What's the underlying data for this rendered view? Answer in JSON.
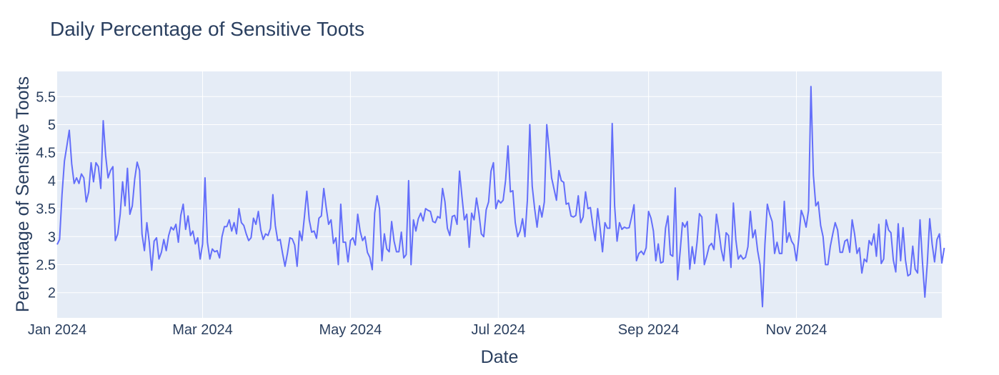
{
  "chart_data": {
    "type": "line",
    "title": "Daily Percentage of Sensitive Toots",
    "xlabel": "Date",
    "ylabel": "Percentage of Sensitive Toots",
    "x_start": "2024-01-01",
    "x_tick_labels": [
      "Jan 2024",
      "Mar 2024",
      "May 2024",
      "Jul 2024",
      "Sep 2024",
      "Nov 2024"
    ],
    "y_tick_labels": [
      "2",
      "2.5",
      "3",
      "3.5",
      "4",
      "4.5",
      "5",
      "5.5"
    ],
    "xlim": [
      "2024-01-01",
      "2024-12-31"
    ],
    "ylim": [
      1.55,
      5.95
    ],
    "grid": true,
    "colors": {
      "line": "#636efa",
      "plot_bg": "#e5ecf6",
      "grid": "#ffffff",
      "text": "#2a3f5f"
    },
    "series": [
      {
        "values": [
          2.86,
          2.95,
          3.75,
          4.35,
          4.62,
          4.9,
          4.3,
          3.95,
          4.05,
          3.95,
          4.12,
          4.05,
          3.62,
          3.8,
          4.32,
          3.98,
          4.32,
          4.25,
          3.86,
          5.07,
          4.45,
          4.05,
          4.18,
          4.25,
          2.93,
          3.05,
          3.4,
          3.98,
          3.55,
          4.22,
          3.4,
          3.55,
          4.03,
          4.33,
          4.18,
          3.05,
          2.75,
          3.25,
          2.9,
          2.4,
          2.92,
          2.98,
          2.6,
          2.72,
          2.95,
          2.75,
          3.02,
          3.17,
          3.12,
          3.22,
          2.9,
          3.38,
          3.58,
          3.13,
          3.37,
          3.02,
          3.1,
          2.87,
          2.98,
          2.6,
          2.87,
          4.05,
          2.9,
          2.6,
          2.78,
          2.73,
          2.75,
          2.62,
          3.0,
          3.18,
          3.18,
          3.3,
          3.1,
          3.25,
          3.05,
          3.5,
          3.25,
          3.2,
          3.05,
          2.93,
          2.98,
          3.33,
          3.22,
          3.45,
          3.12,
          2.95,
          3.05,
          3.02,
          3.15,
          3.75,
          3.2,
          2.93,
          2.95,
          2.7,
          2.47,
          2.7,
          2.98,
          2.96,
          2.85,
          2.47,
          3.1,
          2.93,
          3.35,
          3.81,
          3.3,
          3.08,
          3.1,
          2.97,
          3.33,
          3.37,
          3.86,
          3.52,
          3.22,
          3.3,
          2.88,
          2.98,
          2.5,
          3.58,
          2.9,
          2.9,
          2.55,
          2.93,
          2.98,
          2.85,
          3.4,
          3.1,
          2.93,
          3.0,
          2.72,
          2.63,
          2.41,
          3.42,
          3.73,
          3.5,
          2.57,
          3.05,
          2.78,
          2.73,
          3.27,
          2.92,
          2.73,
          2.73,
          3.08,
          2.62,
          2.68,
          4.0,
          2.5,
          3.3,
          3.1,
          3.32,
          3.42,
          3.28,
          3.5,
          3.47,
          3.45,
          3.27,
          3.25,
          3.36,
          3.33,
          3.86,
          3.62,
          3.15,
          3.02,
          3.36,
          3.38,
          3.22,
          4.17,
          3.72,
          3.3,
          3.4,
          2.81,
          3.42,
          3.3,
          3.69,
          3.42,
          3.05,
          3.0,
          3.48,
          3.62,
          4.17,
          4.32,
          3.5,
          3.65,
          3.6,
          3.65,
          4.0,
          4.62,
          3.8,
          3.82,
          3.25,
          3.0,
          3.1,
          3.32,
          3.0,
          3.65,
          5.0,
          3.9,
          3.5,
          3.17,
          3.55,
          3.35,
          3.62,
          5.0,
          4.55,
          4.05,
          3.85,
          3.65,
          4.18,
          4.0,
          3.97,
          3.58,
          3.6,
          3.37,
          3.35,
          3.38,
          3.73,
          3.25,
          3.35,
          3.8,
          3.5,
          3.52,
          3.2,
          2.93,
          3.5,
          3.15,
          2.73,
          3.25,
          3.15,
          3.15,
          5.02,
          3.55,
          2.92,
          3.25,
          3.13,
          3.17,
          3.15,
          3.16,
          3.35,
          3.57,
          2.57,
          2.7,
          2.74,
          2.68,
          2.8,
          3.45,
          3.33,
          3.1,
          2.57,
          2.87,
          2.53,
          2.55,
          3.15,
          3.37,
          2.68,
          2.65,
          3.87,
          2.23,
          2.72,
          3.25,
          3.17,
          3.27,
          2.42,
          2.82,
          2.52,
          2.9,
          3.41,
          3.35,
          2.5,
          2.65,
          2.83,
          2.88,
          2.77,
          3.4,
          3.1,
          2.77,
          2.57,
          3.07,
          3.02,
          2.45,
          3.6,
          2.95,
          2.6,
          2.67,
          2.6,
          2.63,
          2.82,
          3.45,
          2.98,
          3.12,
          2.75,
          2.5,
          1.75,
          2.86,
          3.58,
          3.4,
          3.27,
          2.7,
          2.9,
          2.7,
          2.7,
          3.63,
          2.9,
          3.07,
          2.92,
          2.85,
          2.57,
          2.98,
          3.47,
          3.35,
          3.17,
          3.47,
          5.68,
          4.1,
          3.55,
          3.62,
          3.2,
          3.0,
          2.5,
          2.5,
          2.83,
          3.05,
          3.25,
          3.12,
          2.72,
          2.72,
          2.92,
          2.95,
          2.72,
          3.3,
          3.05,
          2.7,
          2.8,
          2.35,
          2.6,
          2.55,
          2.93,
          2.85,
          3.05,
          2.65,
          3.22,
          2.52,
          2.6,
          3.3,
          3.12,
          3.07,
          2.58,
          2.37,
          3.23,
          2.57,
          3.16,
          2.58,
          2.3,
          2.33,
          2.83,
          2.42,
          2.35,
          3.3,
          2.55,
          1.92,
          2.52,
          3.32,
          2.87,
          2.55,
          2.95,
          3.05,
          2.53,
          2.8
        ]
      }
    ]
  }
}
